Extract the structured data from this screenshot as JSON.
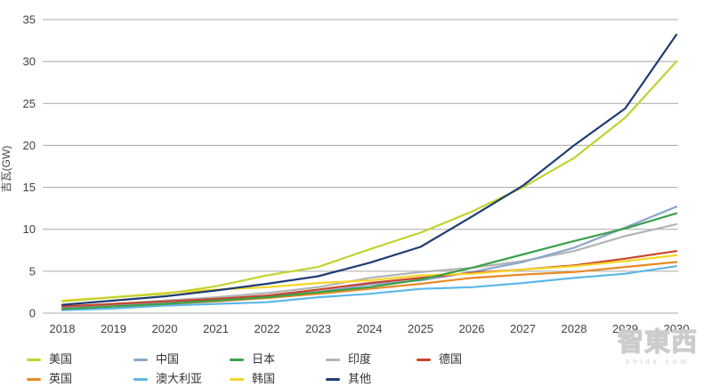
{
  "watermark": {
    "brand": "智東西",
    "domain": "zhidx.com"
  },
  "chart_data": {
    "type": "line",
    "title": "",
    "xlabel": "",
    "ylabel": "吉瓦(GW)",
    "x": [
      2018,
      2019,
      2020,
      2021,
      2022,
      2023,
      2024,
      2025,
      2026,
      2027,
      2028,
      2029,
      2030
    ],
    "ylim": [
      0,
      35
    ],
    "ytick_step": 5,
    "grid": "horizontal",
    "legend_position": "bottom",
    "axis_color": "#414141",
    "gridline_color": "#a8a8a8",
    "series": [
      {
        "name": "美国",
        "color": "#c1d32f",
        "legend_row": 1,
        "values": [
          1.4,
          1.9,
          2.3,
          3.2,
          4.5,
          5.5,
          7.6,
          9.6,
          12.1,
          15.0,
          18.5,
          23.3,
          30.0
        ]
      },
      {
        "name": "中国",
        "color": "#8ba6c9",
        "legend_row": 1,
        "values": [
          0.6,
          0.9,
          1.3,
          1.7,
          2.0,
          2.5,
          3.4,
          3.9,
          4.9,
          6.1,
          7.8,
          10.2,
          12.7
        ]
      },
      {
        "name": "日本",
        "color": "#3aa04c",
        "legend_row": 1,
        "values": [
          0.5,
          0.8,
          1.1,
          1.5,
          1.9,
          2.5,
          3.1,
          4.0,
          5.4,
          7.0,
          8.6,
          10.1,
          11.9
        ]
      },
      {
        "name": "印度",
        "color": "#b2b4b6",
        "legend_row": 1,
        "values": [
          0.7,
          1.1,
          1.5,
          1.9,
          2.4,
          3.1,
          4.2,
          4.9,
          5.4,
          6.2,
          7.4,
          9.2,
          10.6
        ]
      },
      {
        "name": "德国",
        "color": "#c8442f",
        "legend_row": 1,
        "values": [
          0.8,
          1.1,
          1.4,
          1.7,
          2.1,
          2.8,
          3.6,
          4.2,
          4.8,
          5.2,
          5.7,
          6.5,
          7.4
        ]
      },
      {
        "name": "英国",
        "color": "#e98a25",
        "legend_row": 2,
        "values": [
          0.5,
          0.8,
          1.1,
          1.4,
          1.8,
          2.3,
          2.9,
          3.5,
          4.2,
          4.6,
          4.9,
          5.5,
          6.1
        ]
      },
      {
        "name": "澳大利亚",
        "color": "#5bb8e8",
        "legend_row": 2,
        "values": [
          0.35,
          0.55,
          0.9,
          1.1,
          1.3,
          1.9,
          2.3,
          2.9,
          3.1,
          3.6,
          4.2,
          4.7,
          5.6
        ]
      },
      {
        "name": "韩国",
        "color": "#f4d626",
        "legend_row": 2,
        "values": [
          1.5,
          1.9,
          2.4,
          2.8,
          3.1,
          3.6,
          3.9,
          4.5,
          4.7,
          5.2,
          5.6,
          6.2,
          6.9
        ]
      },
      {
        "name": "其他",
        "color": "#1f3c73",
        "legend_row": 2,
        "values": [
          1.0,
          1.5,
          2.0,
          2.7,
          3.5,
          4.4,
          6.0,
          7.9,
          11.5,
          15.2,
          20.0,
          24.4,
          33.2
        ]
      }
    ]
  }
}
